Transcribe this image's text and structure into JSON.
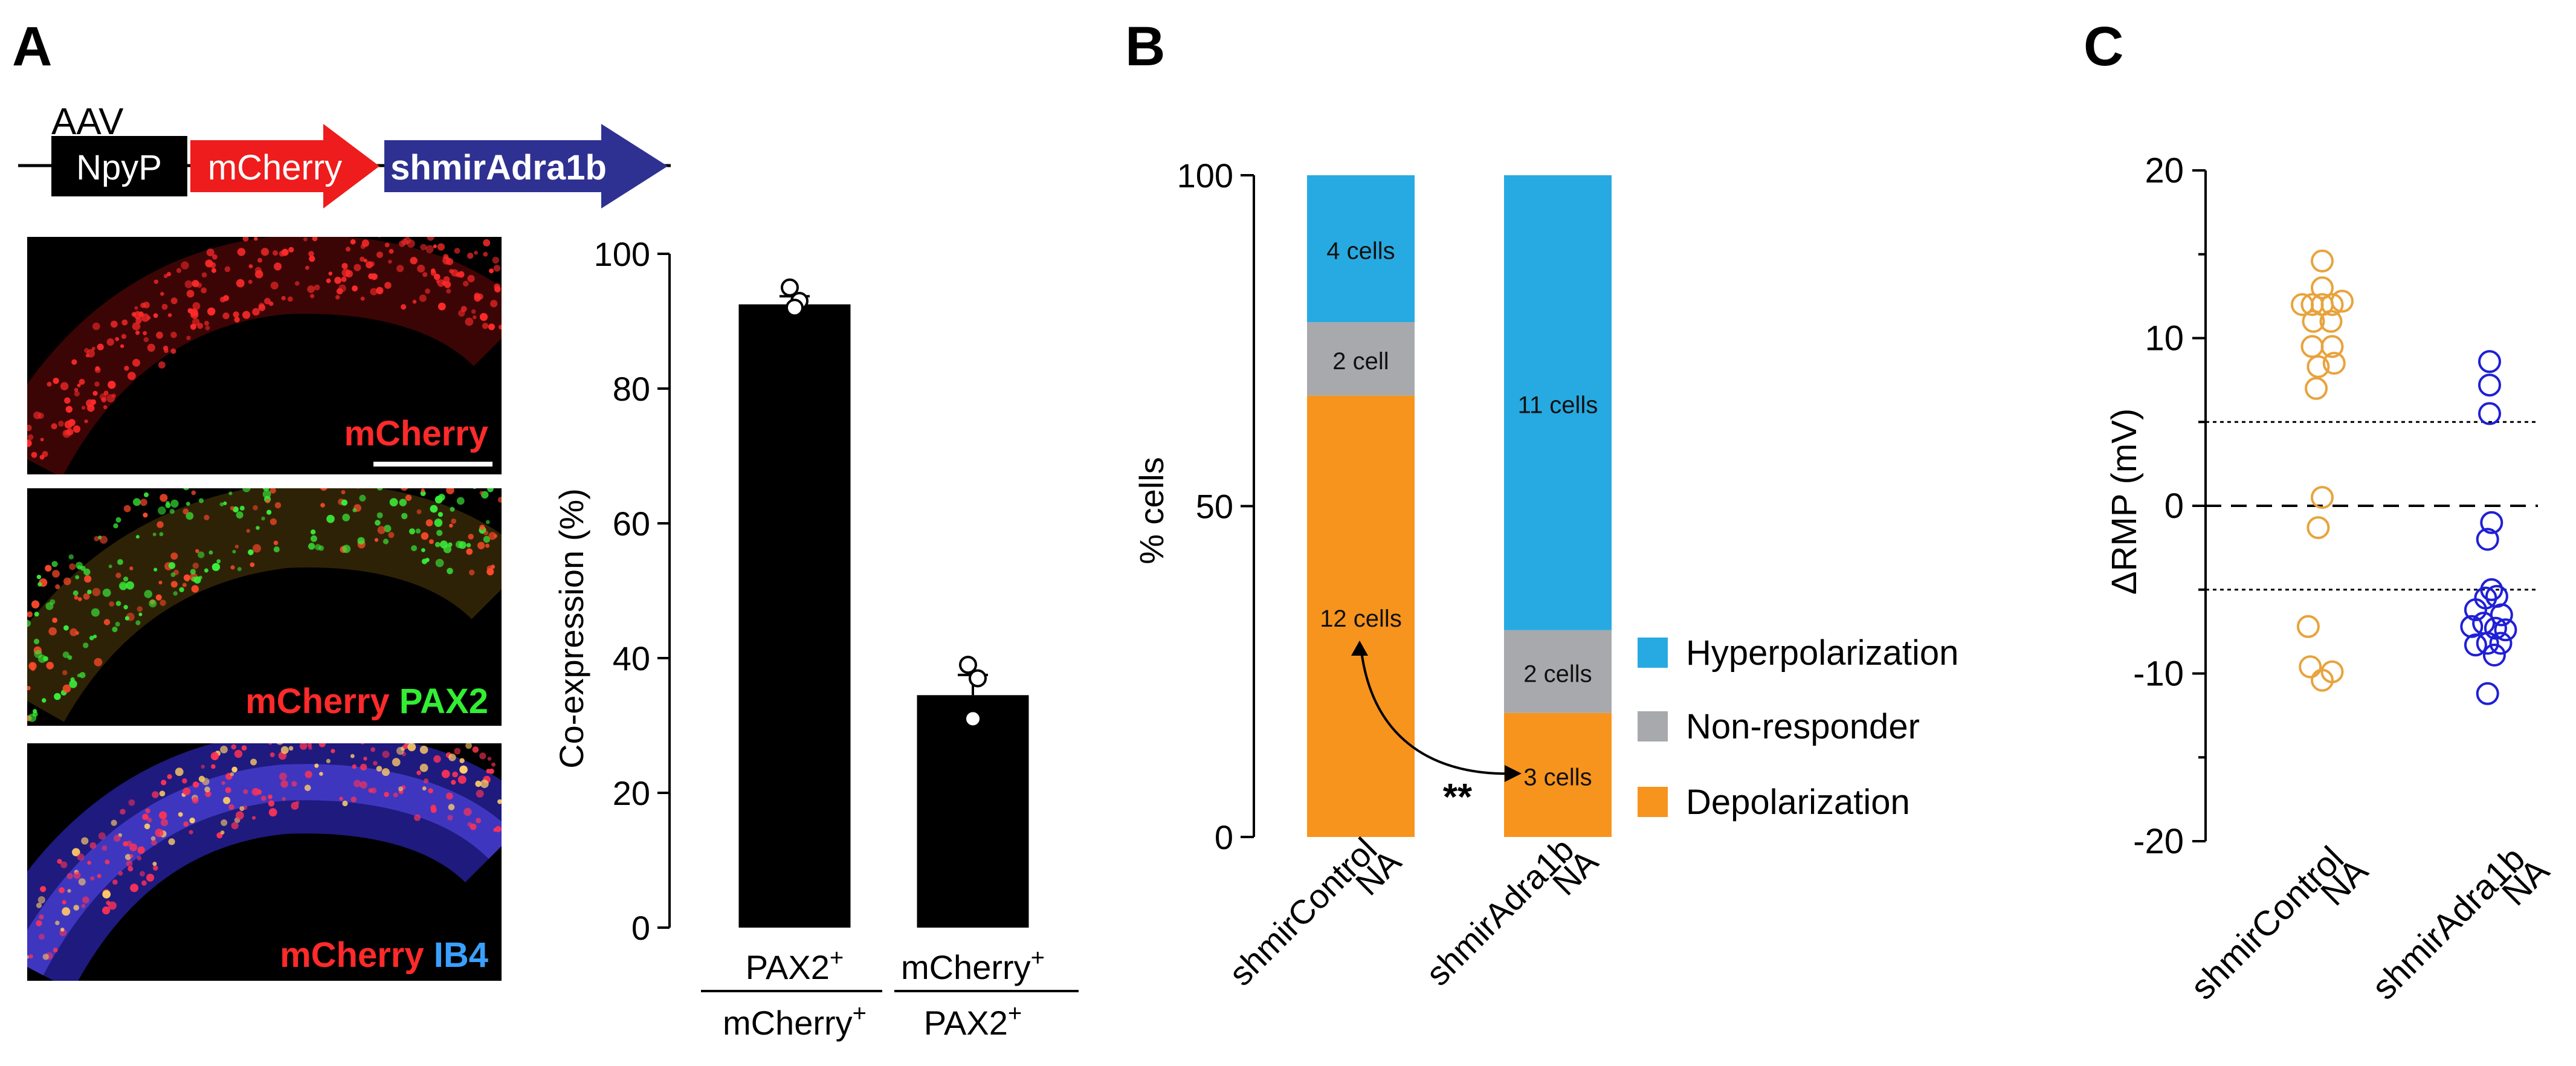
{
  "panel_a": {
    "letter": "A",
    "construct": {
      "vector": "AAV",
      "parts": [
        {
          "label": "NpyP",
          "color": "#000000"
        },
        {
          "label": "mCherry",
          "color": "#ee1c1c"
        },
        {
          "label": "shmirAdra1b",
          "color": "#2e3192"
        }
      ]
    },
    "images": [
      {
        "labels": [
          {
            "text": "mCherry",
            "color": "#ff2a2a"
          }
        ]
      },
      {
        "labels": [
          {
            "text": "mCherry",
            "color": "#ff2a2a"
          },
          {
            "text": "PAX2",
            "color": "#33ee33"
          }
        ]
      },
      {
        "labels": [
          {
            "text": "mCherry",
            "color": "#ff2a2a"
          },
          {
            "text": "IB4",
            "color": "#3aa0ff"
          }
        ]
      }
    ]
  },
  "panel_b": {
    "letter": "B",
    "significance": "**"
  },
  "panel_c": {
    "letter": "C"
  },
  "chart_data": [
    {
      "id": "coexpression",
      "type": "bar",
      "ylabel": "Co-expression (%)",
      "ylim": [
        0,
        100
      ],
      "yticks": [
        0,
        20,
        40,
        60,
        80,
        100
      ],
      "categories": [
        {
          "num": "PAX2",
          "num_sup": "+",
          "den": "mCherry",
          "den_sup": "+"
        },
        {
          "num": "mCherry",
          "num_sup": "+",
          "den": "PAX2",
          "den_sup": "+"
        }
      ],
      "values": [
        92.5,
        34.5
      ],
      "sem": [
        1.2,
        3.0
      ],
      "points": [
        [
          95,
          93,
          92
        ],
        [
          39,
          37,
          31
        ]
      ],
      "color": "#000000"
    },
    {
      "id": "response-fraction",
      "type": "bar",
      "stacked": true,
      "ylabel": "% cells",
      "ylim": [
        0,
        100
      ],
      "yticks": [
        0,
        50,
        100
      ],
      "categories": [
        {
          "line1": "shmirControl",
          "line2": "NA"
        },
        {
          "line1": "shmirAdra1b",
          "line2": "NA"
        }
      ],
      "series": [
        {
          "name": "Depolarization",
          "color": "#f7941d",
          "values": [
            66.7,
            18.75
          ],
          "labels": [
            "12 cells",
            "3 cells"
          ]
        },
        {
          "name": "Non-responder",
          "color": "#a7a9ac",
          "values": [
            11.1,
            12.5
          ],
          "labels": [
            "2 cell",
            "2 cells"
          ]
        },
        {
          "name": "Hyperpolarization",
          "color": "#27aae1",
          "values": [
            22.2,
            68.75
          ],
          "labels": [
            "4 cells",
            "11 cells"
          ]
        }
      ],
      "legend": [
        "Hyperpolarization",
        "Non-responder",
        "Depolarization"
      ]
    },
    {
      "id": "delta-rmp",
      "type": "scatter",
      "ylabel": "ΔRMP (mV)",
      "ylim": [
        -20,
        20
      ],
      "yticks": [
        -20,
        -10,
        0,
        10,
        20
      ],
      "categories": [
        {
          "line1": "shmirControl",
          "line2": "NA"
        },
        {
          "line1": "shmirAdra1b",
          "line2": "NA"
        }
      ],
      "reference_lines": [
        5,
        0,
        -5
      ],
      "groups": [
        {
          "name": "shmirControl NA",
          "color": "#e8a33c",
          "points": [
            [
              0,
              14.6
            ],
            [
              0,
              13.0
            ],
            [
              -0.5,
              12.0
            ],
            [
              -0.25,
              12.0
            ],
            [
              0,
              12.0
            ],
            [
              0.25,
              12.0
            ],
            [
              0.5,
              12.2
            ],
            [
              -0.22,
              11.0
            ],
            [
              0.22,
              11.0
            ],
            [
              -0.25,
              9.5
            ],
            [
              0.25,
              9.5
            ],
            [
              -0.1,
              8.3
            ],
            [
              0.3,
              8.5
            ],
            [
              -0.15,
              7.0
            ],
            [
              0,
              0.5
            ],
            [
              -0.1,
              -1.3
            ],
            [
              -0.35,
              -7.2
            ],
            [
              -0.3,
              -9.6
            ],
            [
              0.25,
              -9.9
            ],
            [
              0,
              -10.4
            ]
          ]
        },
        {
          "name": "shmirAdra1b NA",
          "color": "#1f1fd6",
          "points": [
            [
              0,
              8.6
            ],
            [
              0,
              7.2
            ],
            [
              0,
              5.5
            ],
            [
              0.05,
              -1.0
            ],
            [
              -0.05,
              -2.0
            ],
            [
              0.05,
              -5.0
            ],
            [
              -0.1,
              -5.5
            ],
            [
              0.18,
              -5.4
            ],
            [
              -0.35,
              -6.2
            ],
            [
              0.3,
              -6.5
            ],
            [
              -0.45,
              -7.2
            ],
            [
              -0.15,
              -7.0
            ],
            [
              0.15,
              -7.3
            ],
            [
              0.4,
              -7.4
            ],
            [
              -0.35,
              -8.3
            ],
            [
              -0.05,
              -8.2
            ],
            [
              0.28,
              -8.2
            ],
            [
              0.12,
              -8.9
            ],
            [
              -0.05,
              -11.2
            ]
          ]
        }
      ]
    }
  ]
}
